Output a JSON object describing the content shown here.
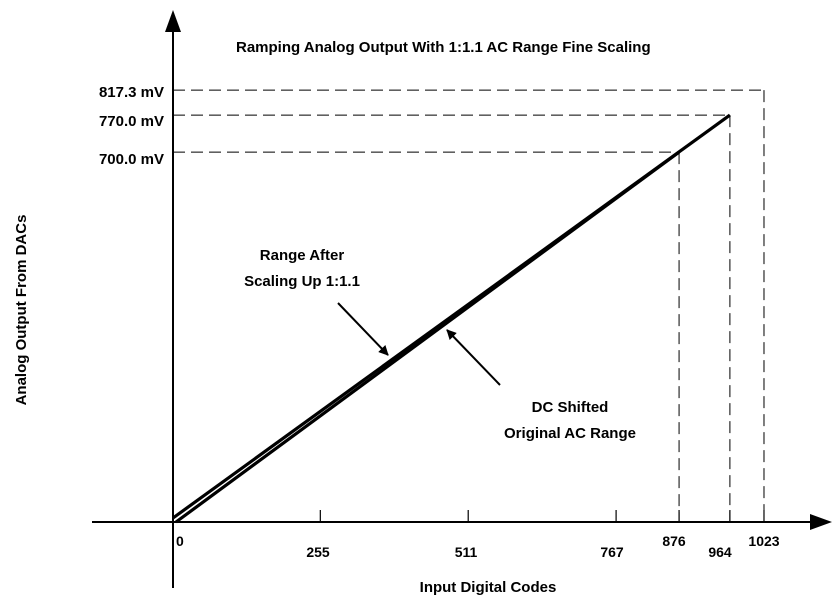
{
  "chart_data": {
    "type": "line",
    "title": "Ramping Analog Output With 1:1.1 AC Range Fine Scaling",
    "xlabel": "Input Digital Codes",
    "ylabel": "Analog Output From DACs",
    "x_ticks": [
      "0",
      "255",
      "511",
      "767",
      "876",
      "964",
      "1023"
    ],
    "y_ticks": [
      "700.0 mV",
      "770.0 mV",
      "817.3 mV"
    ],
    "series": [
      {
        "x": [
          0,
          964
        ],
        "y": [
          0,
          770.0
        ]
      },
      {
        "x": [
          0,
          876
        ],
        "y": [
          0,
          700.0
        ]
      }
    ],
    "reference_lines": [
      {
        "x": 876,
        "y": 700.0
      },
      {
        "x": 964,
        "y": 770.0
      },
      {
        "x": 1023,
        "y": 817.3
      }
    ],
    "annotations": [
      {
        "lines": [
          "Range After",
          "Scaling Up 1:1.1"
        ],
        "points_to_x": 380
      },
      {
        "lines": [
          "DC Shifted",
          "Original AC Range"
        ],
        "points_to_x": 470
      }
    ],
    "xlim": [
      0,
      1023
    ],
    "ylim": [
      0,
      817.3
    ],
    "grid": false
  }
}
